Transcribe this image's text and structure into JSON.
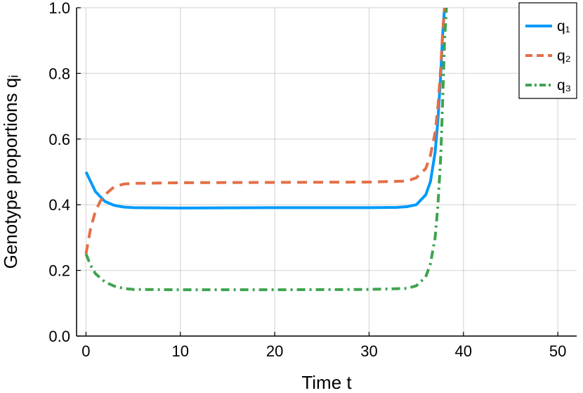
{
  "chart_data": {
    "type": "line",
    "title": "",
    "xlabel": "Time t",
    "ylabel": "Genotype proportions qᵢ",
    "xlim": [
      -1,
      52
    ],
    "ylim": [
      0,
      1
    ],
    "xticks": [
      0,
      10,
      20,
      30,
      40,
      50
    ],
    "yticks": [
      0.0,
      0.2,
      0.4,
      0.6,
      0.8,
      1.0
    ],
    "xtick_labels": [
      "0",
      "10",
      "20",
      "30",
      "40",
      "50"
    ],
    "ytick_labels": [
      "0.0",
      "0.2",
      "0.4",
      "0.6",
      "0.8",
      "1.0"
    ],
    "grid": true,
    "legend_position": "top-right",
    "series": [
      {
        "name": "q₁",
        "color": "#009AFA",
        "dash": "solid",
        "x": [
          0,
          0.5,
          1,
          2,
          3,
          4,
          5,
          10,
          20,
          30,
          33,
          34,
          35,
          36,
          36.5,
          37,
          37.3,
          37.6,
          37.8,
          38
        ],
        "y": [
          0.5,
          0.47,
          0.44,
          0.41,
          0.398,
          0.393,
          0.391,
          0.39,
          0.391,
          0.391,
          0.392,
          0.394,
          0.4,
          0.43,
          0.47,
          0.56,
          0.66,
          0.8,
          0.92,
          1.0
        ]
      },
      {
        "name": "q₂",
        "color": "#E36F47",
        "dash": "dash",
        "x": [
          0,
          0.5,
          1,
          1.5,
          2,
          3,
          4,
          5,
          10,
          20,
          30,
          34,
          35,
          36,
          36.5,
          37,
          37.3,
          37.6,
          37.8,
          38
        ],
        "y": [
          0.25,
          0.33,
          0.38,
          0.41,
          0.43,
          0.455,
          0.463,
          0.465,
          0.467,
          0.468,
          0.469,
          0.472,
          0.482,
          0.51,
          0.55,
          0.62,
          0.7,
          0.82,
          0.93,
          1.0
        ]
      },
      {
        "name": "q₃",
        "color": "#3EA44E",
        "dash": "dashdot",
        "x": [
          0,
          0.5,
          1,
          2,
          3,
          4,
          5,
          10,
          20,
          30,
          34,
          35,
          36,
          36.5,
          37,
          37.3,
          37.6,
          37.8,
          38,
          38.2
        ],
        "y": [
          0.25,
          0.215,
          0.19,
          0.165,
          0.152,
          0.145,
          0.142,
          0.141,
          0.141,
          0.142,
          0.145,
          0.153,
          0.18,
          0.22,
          0.3,
          0.4,
          0.55,
          0.72,
          0.9,
          1.0
        ]
      }
    ]
  }
}
